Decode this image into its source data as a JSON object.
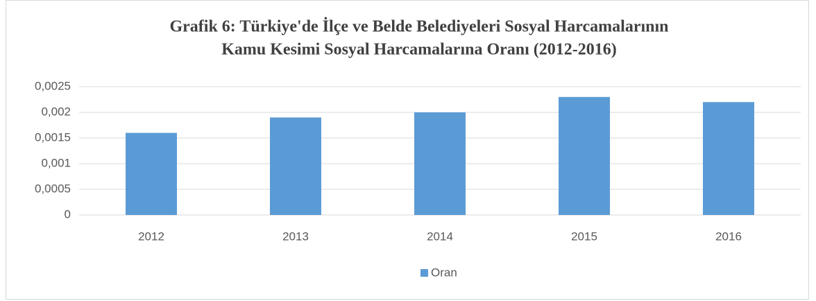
{
  "chart_data": {
    "type": "bar",
    "title": [
      "Grafik 6: Türkiye'de İlçe ve Belde Belediyeleri Sosyal Harcamalarının",
      "Kamu Kesimi Sosyal Harcamalarına Oranı (2012-2016)"
    ],
    "categories": [
      "2012",
      "2013",
      "2014",
      "2015",
      "2016"
    ],
    "series": [
      {
        "name": "Oran",
        "color": "#5b9bd5",
        "values": [
          0.0016,
          0.0019,
          0.002,
          0.0023,
          0.0022
        ]
      }
    ],
    "ylim": [
      0,
      0.0025
    ],
    "yticks": [
      0,
      {
        "value": 0.0005,
        "label": "0,0005"
      },
      {
        "value": 0.001,
        "label": "0,001"
      },
      {
        "value": 0.0015,
        "label": "0,0015"
      },
      {
        "value": 0.002,
        "label": "0,002"
      },
      {
        "value": 0.0025,
        "label": "0,0025"
      }
    ],
    "grid": true,
    "legend": "bottom"
  }
}
